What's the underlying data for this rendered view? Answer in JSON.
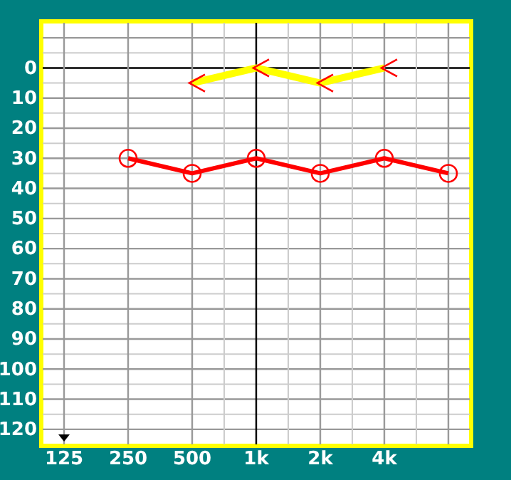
{
  "chart_data": {
    "type": "line",
    "categories": [
      "125",
      "250",
      "500",
      "1k",
      "2k",
      "4k",
      null
    ],
    "ylim": [
      125,
      -15
    ],
    "yticks": [
      0,
      10,
      20,
      30,
      40,
      50,
      60,
      70,
      80,
      90,
      100,
      110,
      120
    ],
    "grid": true,
    "series": [
      {
        "color": "#ff0000",
        "values": [
          null,
          30,
          35,
          30,
          35,
          30,
          35
        ],
        "marker": "circle"
      },
      {
        "color": "#ffff00",
        "values": [
          null,
          null,
          5,
          0,
          5,
          0,
          null
        ],
        "marker": "cross"
      }
    ]
  }
}
